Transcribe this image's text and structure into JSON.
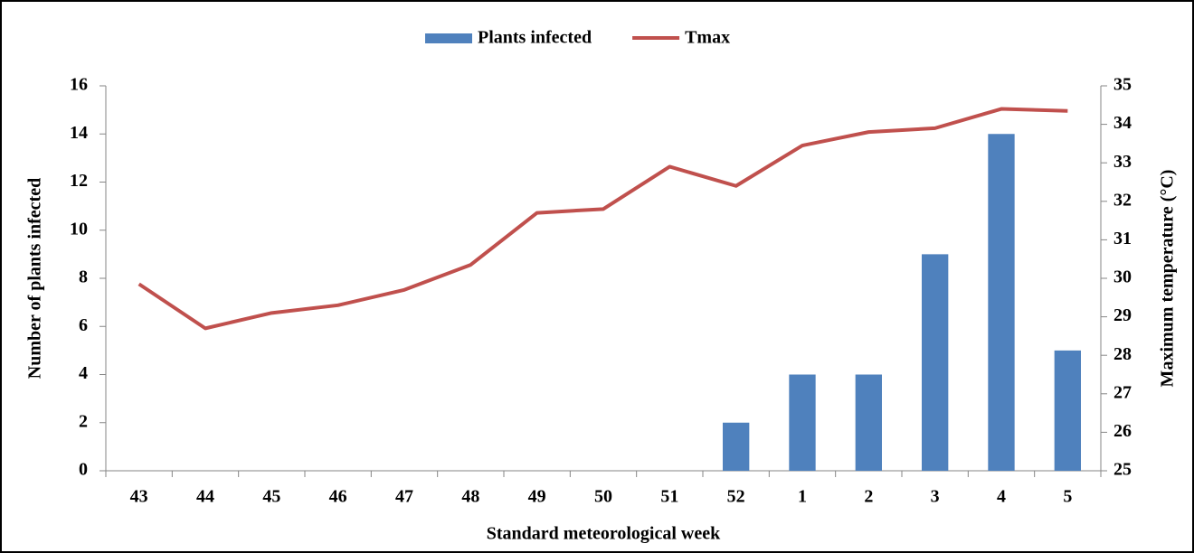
{
  "chart_data": {
    "type": "bar_line",
    "x_label": "Standard meteorological week",
    "y_label": "Number of plants infected",
    "y2_label": "Maximum temperature (°C)",
    "categories": [
      "43",
      "44",
      "45",
      "46",
      "47",
      "48",
      "49",
      "50",
      "51",
      "52",
      "1",
      "2",
      "3",
      "4",
      "5"
    ],
    "series": [
      {
        "name": "Plants infected",
        "color": "#4f81bd",
        "type": "bar",
        "values": [
          0,
          0,
          0,
          0,
          0,
          0,
          0,
          0,
          0,
          2,
          4,
          4,
          9,
          14,
          5
        ]
      },
      {
        "name": "Tmax",
        "color": "#c0504d",
        "type": "line",
        "axis": "y2",
        "values": [
          29.85,
          28.7,
          29.1,
          29.3,
          29.7,
          30.35,
          31.7,
          31.8,
          32.9,
          32.4,
          33.45,
          33.8,
          33.9,
          34.4,
          34.35
        ]
      }
    ],
    "ylim": [
      0,
      16
    ],
    "yticks": [
      0,
      2,
      4,
      6,
      8,
      10,
      12,
      14,
      16
    ],
    "y2lim": [
      25,
      35
    ],
    "y2ticks": [
      25,
      26,
      27,
      28,
      29,
      30,
      31,
      32,
      33,
      34,
      35
    ],
    "legend": "top",
    "grid": false
  }
}
